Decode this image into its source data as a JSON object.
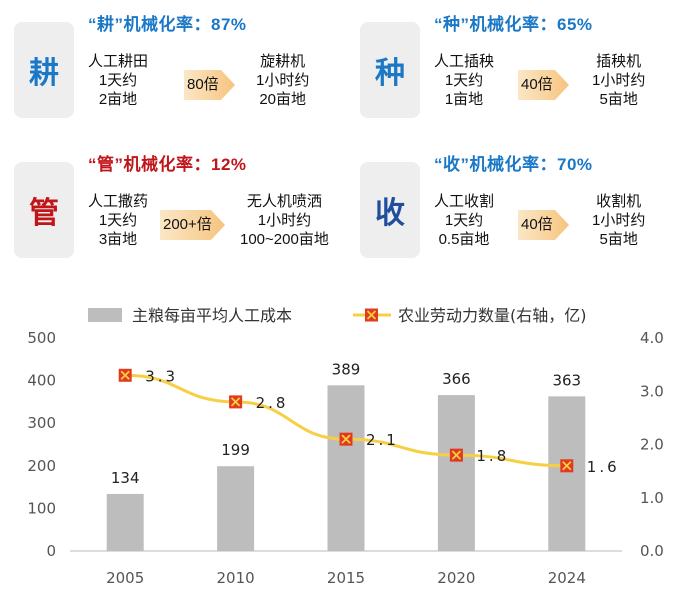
{
  "cards": [
    {
      "key": "geng",
      "icon_char": "耕",
      "icon_color": "#1a78c7",
      "title": "“耕”机械化率：87%",
      "title_color": "#1a78c7",
      "manual": [
        "人工耕田",
        "1天约",
        "2亩地"
      ],
      "multiplier": "80倍",
      "machine": [
        "旋耕机",
        "1小时约",
        "20亩地"
      ]
    },
    {
      "key": "zhong",
      "icon_char": "种",
      "icon_color": "#1a78c7",
      "title": "“种”机械化率：65%",
      "title_color": "#1a78c7",
      "manual": [
        "人工插秧",
        "1天约",
        "1亩地"
      ],
      "multiplier": "40倍",
      "machine": [
        "插秧机",
        "1小时约",
        "5亩地"
      ]
    },
    {
      "key": "guan",
      "icon_char": "管",
      "icon_color": "#c0161a",
      "title": "“管”机械化率：12%",
      "title_color": "#c0161a",
      "manual": [
        "人工撒药",
        "1天约",
        "3亩地"
      ],
      "multiplier": "200+倍",
      "machine": [
        "无人机喷洒",
        "1小时约",
        "100~200亩地"
      ]
    },
    {
      "key": "shou",
      "icon_char": "收",
      "icon_color": "#1f4e9e",
      "title": "“收”机械化率：70%",
      "title_color": "#1a78c7",
      "manual": [
        "人工收割",
        "1天约",
        "0.5亩地"
      ],
      "multiplier": "40倍",
      "machine": [
        "收割机",
        "1小时约",
        "5亩地"
      ]
    }
  ],
  "chart_data": {
    "type": "bar+line",
    "categories": [
      "2005",
      "2010",
      "2015",
      "2020",
      "2024"
    ],
    "series": [
      {
        "name": "主粮每亩平均人工成本",
        "type": "bar",
        "axis": "left",
        "values": [
          134,
          199,
          389,
          366,
          363
        ],
        "labels": [
          "134",
          "199",
          "389",
          "366",
          "363"
        ],
        "color": "#bdbdbd"
      },
      {
        "name": "农业劳动力数量(右轴，亿)",
        "type": "line",
        "axis": "right",
        "values": [
          3.3,
          2.8,
          2.1,
          1.8,
          1.6
        ],
        "labels": [
          "3.3",
          "2.8",
          "2.1",
          "1.8",
          "1.6"
        ],
        "color": "#f7cf45",
        "marker_color": "#e23a1e"
      }
    ],
    "y_left": {
      "range": [
        0,
        500
      ],
      "ticks": [
        "0",
        "100",
        "200",
        "300",
        "400",
        "500"
      ]
    },
    "y_right": {
      "range": [
        0,
        4
      ],
      "ticks": [
        "0.0",
        "1.0",
        "2.0",
        "3.0",
        "4.0"
      ]
    },
    "legend": "top",
    "grid": false
  }
}
